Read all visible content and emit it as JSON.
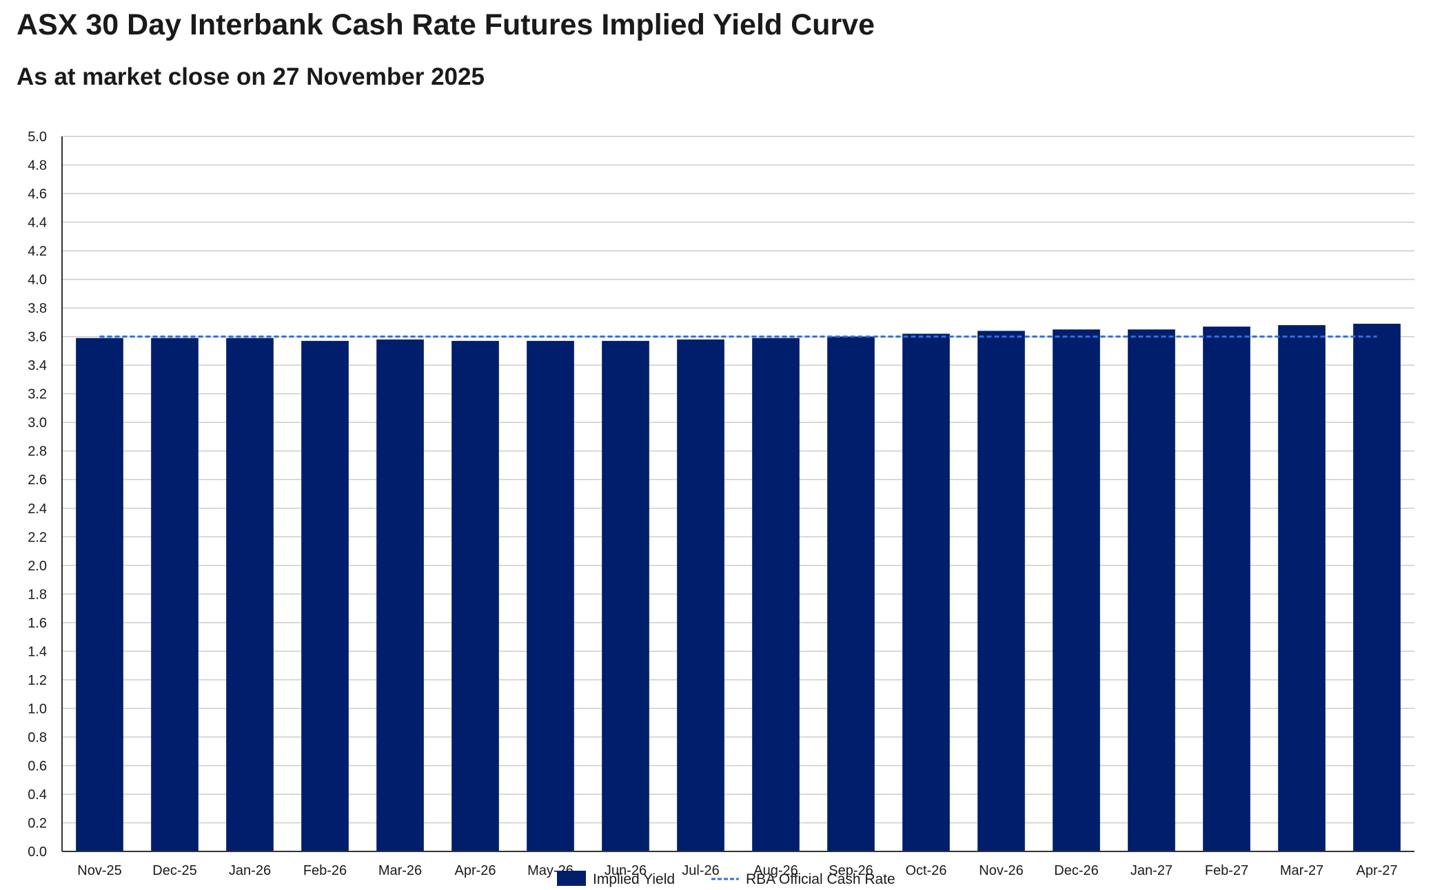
{
  "page": {
    "title": "ASX 30 Day Interbank Cash Rate Futures Implied Yield Curve",
    "subtitle": "As at market close on 27 November 2025"
  },
  "colors": {
    "bar": "#001e6b",
    "reference_line": "#2f6fe0",
    "grid": "#cccccc",
    "axis": "#333333"
  },
  "chart_data": {
    "type": "bar",
    "title": "ASX 30 Day Interbank Cash Rate Futures Implied Yield Curve",
    "subtitle": "As at market close on 27 November 2025",
    "xlabel": "",
    "ylabel": "",
    "categories": [
      "Nov-25",
      "Dec-25",
      "Jan-26",
      "Feb-26",
      "Mar-26",
      "Apr-26",
      "May-26",
      "Jun-26",
      "Jul-26",
      "Aug-26",
      "Sep-26",
      "Oct-26",
      "Nov-26",
      "Dec-26",
      "Jan-27",
      "Feb-27",
      "Mar-27",
      "Apr-27"
    ],
    "series": [
      {
        "name": "Implied Yield",
        "type": "bar",
        "values": [
          3.59,
          3.59,
          3.59,
          3.57,
          3.58,
          3.57,
          3.57,
          3.57,
          3.58,
          3.59,
          3.6,
          3.62,
          3.64,
          3.65,
          3.65,
          3.67,
          3.68,
          3.69
        ]
      },
      {
        "name": "RBA Official Cash Rate",
        "type": "line",
        "style": "dashed",
        "values": [
          3.6,
          3.6,
          3.6,
          3.6,
          3.6,
          3.6,
          3.6,
          3.6,
          3.6,
          3.6,
          3.6,
          3.6,
          3.6,
          3.6,
          3.6,
          3.6,
          3.6,
          3.6
        ]
      }
    ],
    "ylim": [
      0,
      5
    ],
    "yticks": [
      "0.0",
      "0.2",
      "0.4",
      "0.6",
      "0.8",
      "1.0",
      "1.2",
      "1.4",
      "1.6",
      "1.8",
      "2.0",
      "2.2",
      "2.4",
      "2.6",
      "2.8",
      "3.0",
      "3.2",
      "3.4",
      "3.6",
      "3.8",
      "4.0",
      "4.2",
      "4.4",
      "4.6",
      "4.8",
      "5.0"
    ],
    "grid": true,
    "legend": {
      "position": "bottom-center",
      "items": [
        "Implied Yield",
        "RBA Official Cash Rate"
      ]
    }
  }
}
